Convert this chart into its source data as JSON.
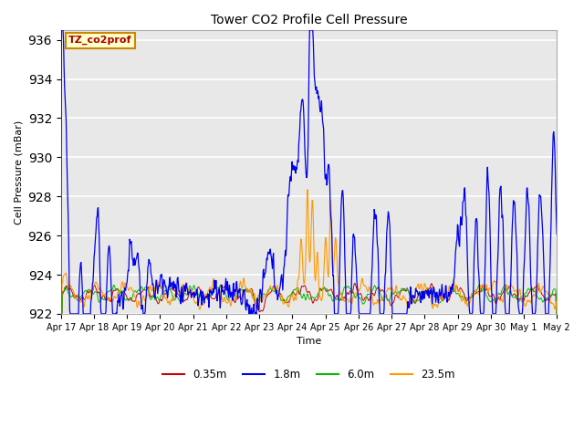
{
  "title": "Tower CO2 Profile Cell Pressure",
  "xlabel": "Time",
  "ylabel": "Cell Pressure (mBar)",
  "ylim": [
    922,
    936.5
  ],
  "yticks": [
    922,
    924,
    926,
    928,
    930,
    932,
    934,
    936
  ],
  "annotation_text": "TZ_co2prof",
  "annotation_bg": "#ffffcc",
  "annotation_border": "#cc8800",
  "plot_bg": "#e8e8e8",
  "colors": {
    "0.35m": "#cc0000",
    "1.8m": "#0000ee",
    "6.0m": "#00bb00",
    "23.5m": "#ff9900"
  },
  "x_tick_labels": [
    "Apr 17",
    "Apr 18",
    "Apr 19",
    "Apr 20",
    "Apr 21",
    "Apr 22",
    "Apr 23",
    "Apr 24",
    "Apr 25",
    "Apr 26",
    "Apr 27",
    "Apr 28",
    "Apr 29",
    "Apr 30",
    "May 1",
    "May 2"
  ],
  "num_points": 960
}
